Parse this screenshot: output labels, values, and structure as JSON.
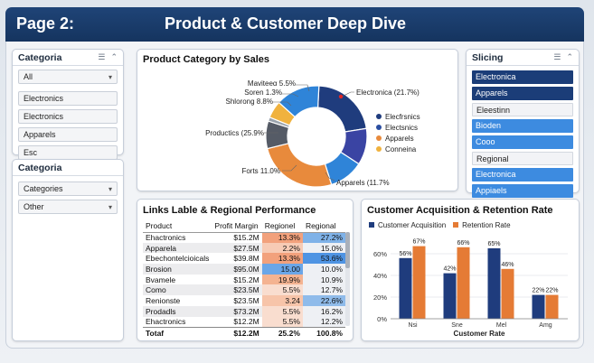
{
  "header": {
    "page_label": "Page 2:",
    "title": "Product & Customer Deep Dive"
  },
  "slicer_category": {
    "label": "Categoria",
    "selected": "All",
    "items": [
      "Electronics",
      "Electronics",
      "Apparels",
      "Esc"
    ]
  },
  "slicer_category2": {
    "label": "Categoria",
    "dropdowns": [
      "Categories",
      "Other"
    ]
  },
  "slicer_slicing": {
    "label": "Slicing",
    "items": [
      {
        "text": "Electronica",
        "style": "dark"
      },
      {
        "text": "Apparels",
        "style": "dark"
      },
      {
        "text": "Eleestinn",
        "style": "plain"
      },
      {
        "text": "Bioden",
        "style": "light"
      },
      {
        "text": "Cooo",
        "style": "light"
      },
      {
        "text": "Regional",
        "style": "plain"
      },
      {
        "text": "Electronica",
        "style": "light"
      },
      {
        "text": "Appiaels",
        "style": "light"
      }
    ]
  },
  "donut": {
    "title": "Product Category by Sales",
    "callouts": [
      {
        "id": "maviteem",
        "text": "Maviteeα 5.5%"
      },
      {
        "id": "soren",
        "text": "Soren 1.3%"
      },
      {
        "id": "shlorong",
        "text": "Shlorong 8.8%"
      },
      {
        "id": "electronica",
        "text": "Electronica (21.7%)"
      },
      {
        "id": "productics",
        "text": "Productics (25.9%"
      },
      {
        "id": "forts",
        "text": "Forts 11.0%"
      },
      {
        "id": "apparels",
        "text": "Apparels (11.7%"
      }
    ],
    "legend": [
      {
        "label": "Elecfrsnics",
        "color": "#1f3c7d"
      },
      {
        "label": "Electsnics",
        "color": "#2a4da0"
      },
      {
        "label": "Apparels",
        "color": "#e88a3c"
      },
      {
        "label": "Conneina",
        "color": "#f0b23e"
      }
    ]
  },
  "chart_data": [
    {
      "type": "pie",
      "title": "Product Category by Sales",
      "slices": [
        {
          "label": "Electronica",
          "value": 21.7,
          "color": "#1f3c7d"
        },
        {
          "label": "Apparels",
          "value": 11.7,
          "color": "#3a44a3"
        },
        {
          "label": "Forts",
          "value": 11.0,
          "color": "#2f84d8"
        },
        {
          "label": "Productics",
          "value": 25.9,
          "color": "#e88a3c"
        },
        {
          "label": "Shlorong",
          "value": 8.8,
          "color": "#555b66"
        },
        {
          "label": "Soren",
          "value": 1.3,
          "color": "#9aa3ad"
        },
        {
          "label": "Maviteeα",
          "value": 5.5,
          "color": "#f0b23e"
        },
        {
          "label": "",
          "value": 14.1,
          "color": "#2f84d8"
        }
      ]
    },
    {
      "type": "bar",
      "title": "Customer Acquisition & Retention Rate",
      "categories": [
        "Nsi",
        "Sne",
        "Mel",
        "Amg"
      ],
      "series": [
        {
          "name": "Customer Acquisition",
          "color": "#1f3c7d",
          "values": [
            56,
            42,
            65,
            22
          ]
        },
        {
          "name": "Retention Rate",
          "color": "#e57b35",
          "values": [
            67,
            66,
            46,
            22
          ]
        }
      ],
      "data_labels": [
        [
          "56%",
          "42%",
          "65%",
          "22%"
        ],
        [
          "67%",
          "66%",
          "46%",
          "22%"
        ]
      ],
      "xlabel": "Customer Rate",
      "yticks": [
        "0%",
        "20%",
        "40%",
        "60%"
      ],
      "ylim": [
        0,
        75
      ]
    }
  ],
  "table": {
    "title": "Links Lable & Regional Performance",
    "columns": [
      "Product",
      "Profit Margin",
      "Regionel",
      "Regional"
    ],
    "rows": [
      {
        "product": "Ehactronics",
        "margin": "$15.2M",
        "r1": "13.3%",
        "r2": "27.2%",
        "c1": "#f2a17c",
        "c2": "#7fb2e8"
      },
      {
        "product": "Apparela",
        "margin": "$27.5M",
        "r1": "2.2%",
        "r2": "15.0%",
        "c1": "#f7cbb5",
        "c2": "#eef0f4"
      },
      {
        "product": "Ebechontelcioicals",
        "margin": "$39.8M",
        "r1": "13.3%",
        "r2": "53.6%",
        "c1": "#f2a17c",
        "c2": "#4f94e3"
      },
      {
        "product": "Brosion",
        "margin": "$95.0M",
        "r1": "15.00",
        "r2": "10.0%",
        "c1": "#6aa6e8",
        "c2": "#eef0f4"
      },
      {
        "product": "Bvamele",
        "margin": "$15.2M",
        "r1": "19.9%",
        "r2": "10.9%",
        "c1": "#f4b391",
        "c2": "#eef0f4"
      },
      {
        "product": "Como",
        "margin": "$23.5M",
        "r1": "5.5%",
        "r2": "12.7%",
        "c1": "#f9ddcf",
        "c2": "#eef0f4"
      },
      {
        "product": "Renionste",
        "margin": "$23.5M",
        "r1": "3.24",
        "r2": "22.6%",
        "c1": "#f7c4a9",
        "c2": "#8fbbea"
      },
      {
        "product": "Prodadls",
        "margin": "$73.2M",
        "r1": "5.5%",
        "r2": "16.2%",
        "c1": "#f9ddcf",
        "c2": "#eef0f4"
      },
      {
        "product": "Ehactronics",
        "margin": "$12.2M",
        "r1": "5.5%",
        "r2": "12.2%",
        "c1": "#f9ddcf",
        "c2": "#eef0f4"
      }
    ],
    "total": {
      "label": "Totaf",
      "margin": "$12.2M",
      "r1": "25.2%",
      "r2": "100.8%"
    }
  }
}
